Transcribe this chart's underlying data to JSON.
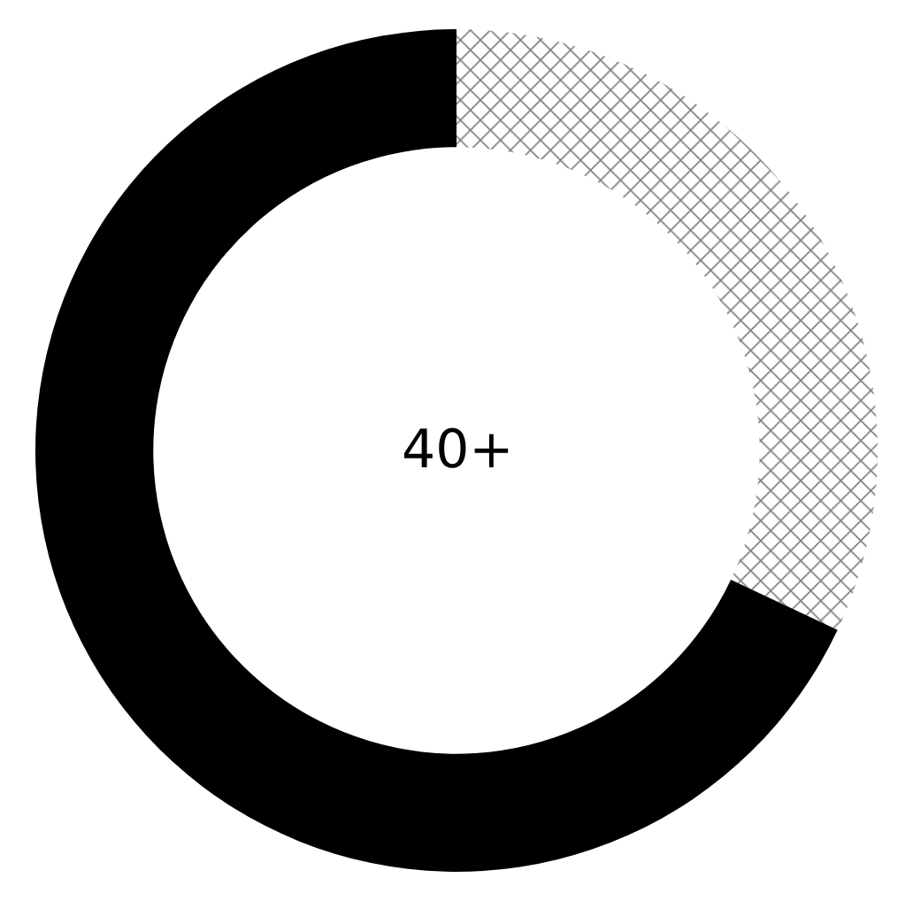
{
  "chart_data": {
    "type": "donut",
    "categories": [
      null,
      null
    ],
    "values": [
      32,
      68
    ],
    "colors": [
      "#ffffff",
      "#000000"
    ],
    "annotations": [
      "40+"
    ],
    "legend": false
  }
}
